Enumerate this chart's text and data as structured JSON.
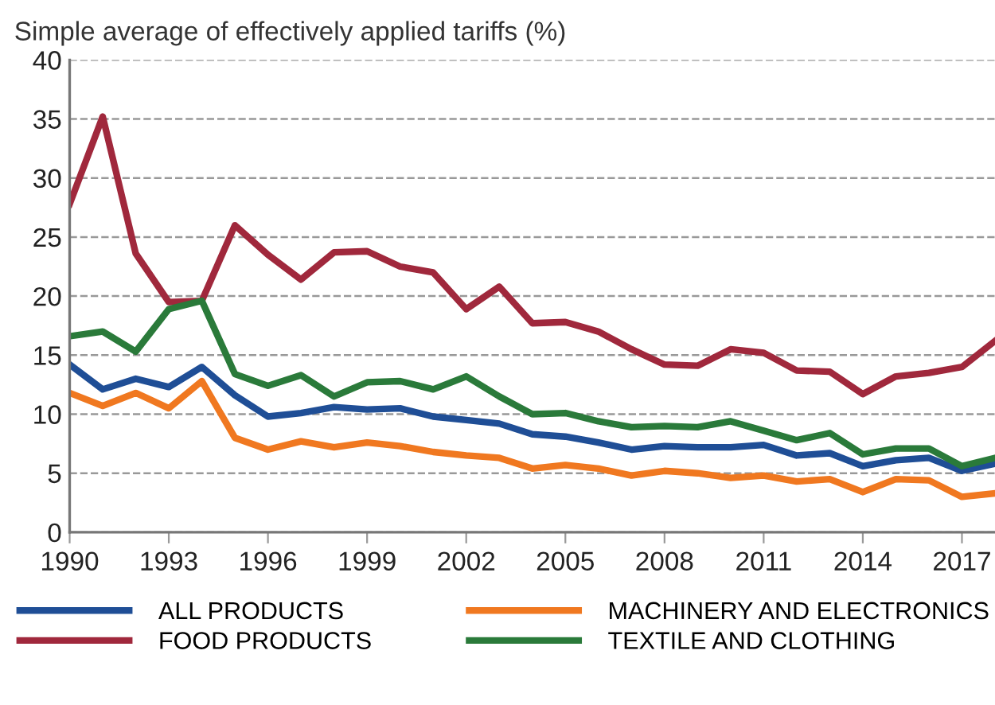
{
  "chart_data": {
    "type": "line",
    "title": "Simple average of effectively applied tariffs (%)",
    "x": [
      1990,
      1991,
      1992,
      1993,
      1994,
      1995,
      1996,
      1997,
      1998,
      1999,
      2000,
      2001,
      2002,
      2003,
      2004,
      2005,
      2006,
      2007,
      2008,
      2009,
      2010,
      2011,
      2012,
      2013,
      2014,
      2015,
      2016,
      2017,
      2018
    ],
    "series": [
      {
        "name": "ALL PRODUCTS",
        "color": "#1f4e96",
        "values": [
          14.2,
          12.1,
          13.0,
          12.3,
          14.0,
          11.6,
          9.8,
          10.1,
          10.6,
          10.4,
          10.5,
          9.8,
          9.5,
          9.2,
          8.3,
          8.1,
          7.6,
          7.0,
          7.3,
          7.2,
          7.2,
          7.4,
          6.5,
          6.7,
          5.6,
          6.1,
          6.3,
          5.2,
          5.8
        ]
      },
      {
        "name": "FOOD PRODUCTS",
        "color": "#a0283c",
        "values": [
          27.8,
          35.2,
          23.6,
          19.5,
          19.6,
          26.0,
          23.5,
          21.4,
          23.7,
          23.8,
          22.5,
          22.0,
          18.9,
          20.8,
          17.7,
          17.8,
          17.0,
          15.5,
          14.2,
          14.1,
          15.5,
          15.2,
          13.7,
          13.6,
          11.7,
          13.2,
          13.5,
          14.0,
          16.2
        ]
      },
      {
        "name": "MACHINERY AND ELECTRONICS",
        "color": "#f07820",
        "values": [
          11.8,
          10.7,
          11.8,
          10.5,
          12.8,
          8.0,
          7.0,
          7.7,
          7.2,
          7.6,
          7.3,
          6.8,
          6.5,
          6.3,
          5.4,
          5.7,
          5.4,
          4.8,
          5.2,
          5.0,
          4.6,
          4.8,
          4.3,
          4.5,
          3.4,
          4.5,
          4.4,
          3.0,
          3.3
        ]
      },
      {
        "name": "TEXTILE AND CLOTHING",
        "color": "#2a7a3a",
        "values": [
          16.6,
          17.0,
          15.3,
          18.9,
          19.6,
          13.4,
          12.4,
          13.3,
          11.5,
          12.7,
          12.8,
          12.1,
          13.2,
          11.5,
          10.0,
          10.1,
          9.4,
          8.9,
          9.0,
          8.9,
          9.4,
          8.6,
          7.8,
          8.4,
          6.6,
          7.1,
          7.1,
          5.6,
          6.3
        ]
      }
    ],
    "xlim": [
      1990,
      2018
    ],
    "xticks": [
      1990,
      1993,
      1996,
      1999,
      2002,
      2005,
      2008,
      2011,
      2014,
      2017
    ],
    "ylim": [
      0,
      40
    ],
    "yticks": [
      0,
      5,
      10,
      15,
      20,
      25,
      30,
      35,
      40
    ],
    "grid": "y",
    "legend": "bottom",
    "marker": "none",
    "line_style": "solid"
  }
}
